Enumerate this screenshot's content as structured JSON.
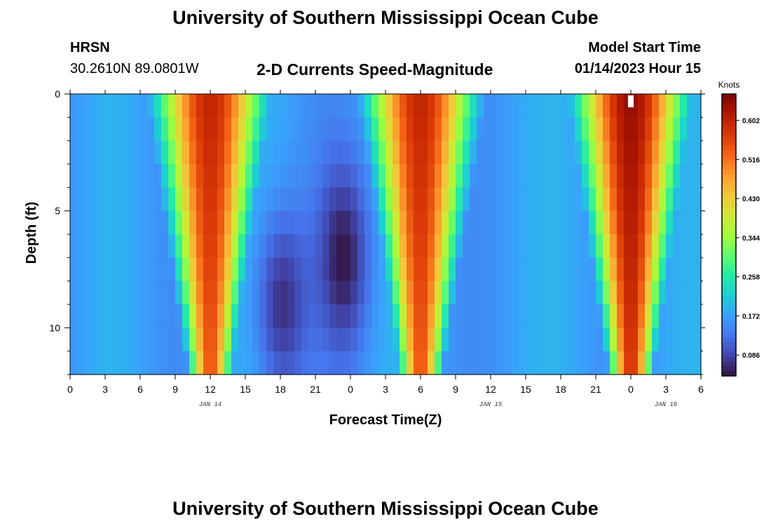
{
  "header": {
    "title": "University of Southern Mississippi Ocean Cube",
    "station": "HRSN",
    "coords": "30.2610N  89.0801W",
    "subtitle": "2-D Currents Speed-Magnitude",
    "model_label": "Model Start Time",
    "model_time": "01/14/2023 Hour 15"
  },
  "footer": {
    "title": "University of Southern Mississippi Ocean Cube"
  },
  "colors": {
    "palette": [
      "#30123b",
      "#4145ab",
      "#4675ed",
      "#39a2fc",
      "#1bcfd4",
      "#24eca6",
      "#61fc6c",
      "#a4fc3b",
      "#d1e834",
      "#f3c63a",
      "#fe9b2d",
      "#f36315",
      "#d93806",
      "#b11901",
      "#7a0402"
    ]
  },
  "chart_data": {
    "type": "heatmap",
    "title": "2-D Currents Speed-Magnitude",
    "xlabel": "Forecast Time(Z)",
    "ylabel": "Depth (ft)",
    "x_range": [
      0,
      54
    ],
    "y_range": [
      0,
      12
    ],
    "x_tick_values": [
      0,
      3,
      6,
      9,
      12,
      15,
      18,
      21,
      24,
      27,
      30,
      33,
      36,
      39,
      42,
      45,
      48,
      51,
      54
    ],
    "x_tick_labels": [
      "0",
      "3",
      "6",
      "9",
      "12",
      "15",
      "18",
      "21",
      "0",
      "3",
      "6",
      "9",
      "12",
      "15",
      "18",
      "21",
      "0",
      "3",
      "6"
    ],
    "y_ticks": [
      0,
      5,
      10
    ],
    "y_tick_labels": [
      "0",
      "5",
      "10"
    ],
    "date_labels": [
      {
        "x": 12,
        "label": "JAN 14"
      },
      {
        "x": 36,
        "label": "JAN 15"
      },
      {
        "x": 51,
        "label": "JAN 16"
      }
    ],
    "colorbar": {
      "label": "Knots",
      "min": 0.04,
      "max": 0.66,
      "ticks": [
        0.086,
        0.172,
        0.258,
        0.344,
        0.43,
        0.516,
        0.602
      ],
      "tick_labels": [
        "0.086",
        "0.172",
        "0.258",
        "0.344",
        "0.430",
        "0.516",
        "0.602"
      ]
    },
    "peaks": [
      {
        "center_hour": 12,
        "depth_reach_ft": 12,
        "max_knots": 0.6
      },
      {
        "center_hour": 30,
        "depth_reach_ft": 12,
        "max_knots": 0.6
      },
      {
        "center_hour": 48,
        "depth_reach_ft": 12,
        "max_knots": 0.64
      }
    ],
    "minima": [
      {
        "center_hour": 18,
        "depth_ft": 9,
        "min_knots": 0.05
      },
      {
        "center_hour": 23.5,
        "depth_ft": 7,
        "min_knots": 0.08
      }
    ]
  }
}
